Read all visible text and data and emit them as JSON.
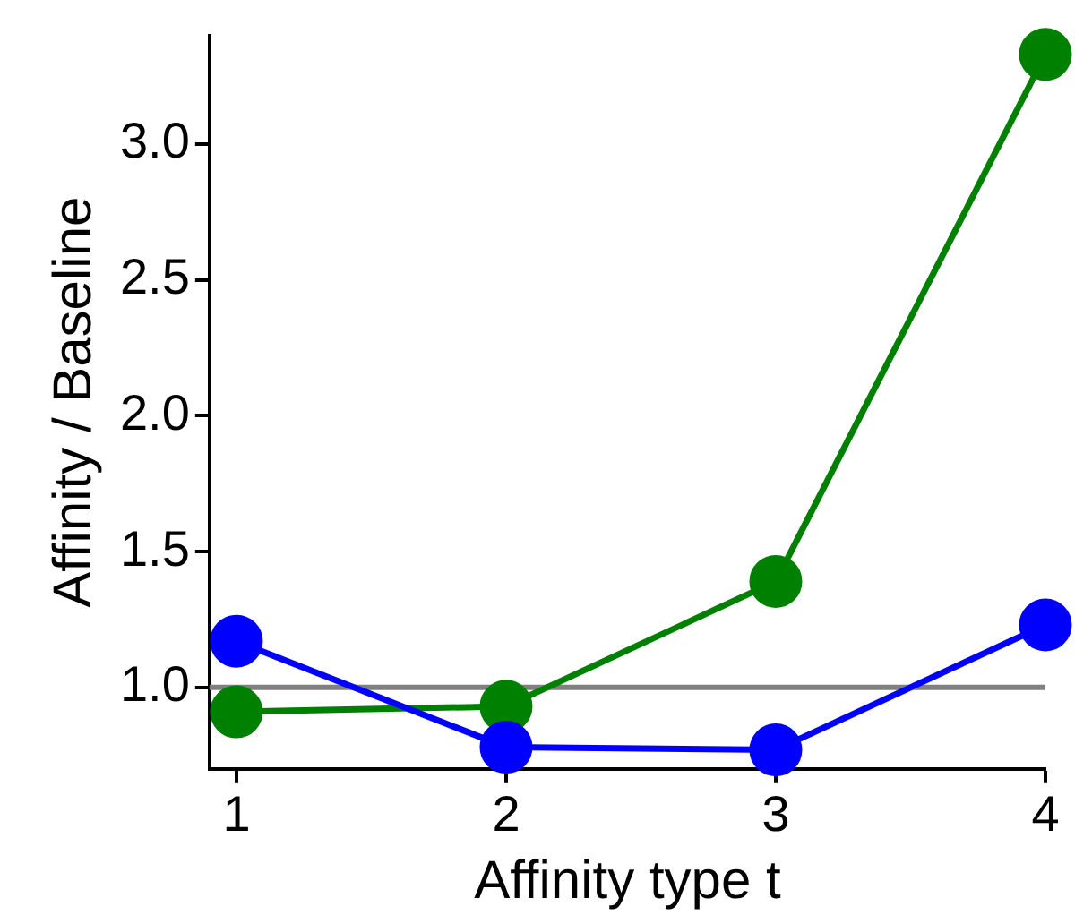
{
  "chart_data": {
    "type": "line",
    "xlabel": "Affinity type t",
    "ylabel": "Affinity / Baseline",
    "x": [
      1,
      2,
      3,
      4
    ],
    "series": [
      {
        "color": "#0000ff",
        "values": [
          1.17,
          0.78,
          0.77,
          1.23
        ]
      },
      {
        "color": "#008000",
        "values": [
          0.91,
          0.93,
          1.39,
          3.33
        ]
      }
    ],
    "xlim": [
      0.9,
      4.0
    ],
    "xticks": [
      1,
      2,
      3,
      4
    ],
    "ylim": [
      0.7,
      3.4
    ],
    "yticks": [
      {
        "value": 1,
        "label": "1.0"
      },
      1.5,
      {
        "value": 2,
        "label": "2.0"
      },
      2.5,
      {
        "value": 3,
        "label": "3.0"
      }
    ],
    "ref_lines": [
      {
        "axis": "y",
        "value": 1.0,
        "color": "#808080"
      }
    ],
    "marker": "circle",
    "line_style": "solid",
    "grid": false,
    "legend": false
  }
}
